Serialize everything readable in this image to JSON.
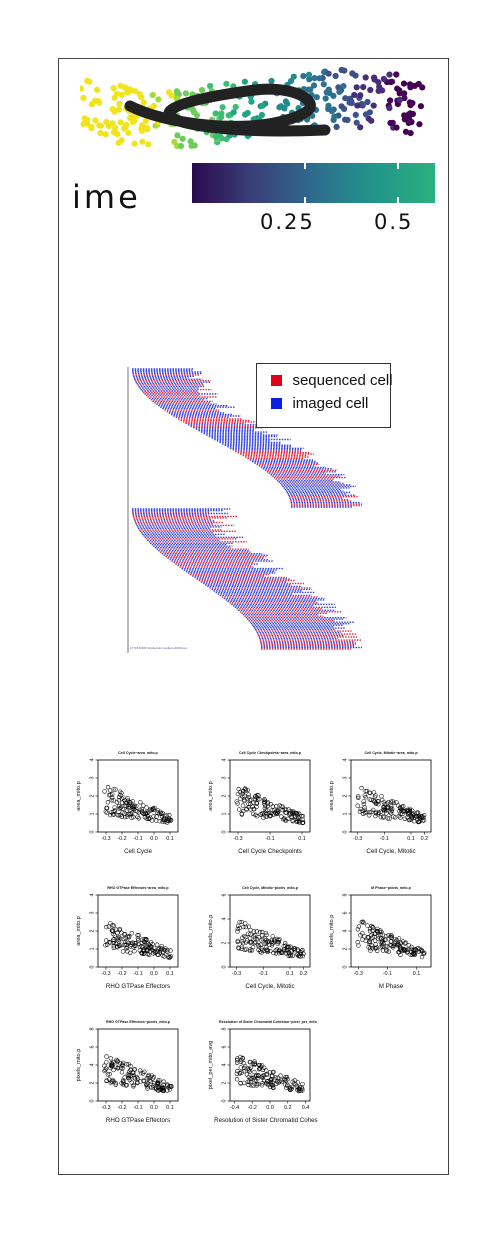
{
  "colorbar": {
    "label": "ime",
    "ticks": [
      "0.25",
      "0.5"
    ],
    "colors": [
      "#2b0b4f",
      "#3a3f7a",
      "#2f6b8e",
      "#21968a",
      "#2bb07f"
    ]
  },
  "legend": {
    "items": [
      {
        "label": "sequenced cell",
        "color": "#e0001b"
      },
      {
        "label": "imaged cell",
        "color": "#0a1fe0"
      }
    ]
  },
  "tiny_caption": "1771572306 Scatterplot median.rdl336.log",
  "chart_data": [
    {
      "type": "scatter",
      "title": "Cell Cycle~area_mito.p",
      "xlabel": "Cell Cycle",
      "ylabel": "area_mito.p",
      "xticks": [
        "-0.3",
        "-0.2",
        "-0.1",
        "0.0",
        "0.1"
      ],
      "yticks": [
        "0",
        "1",
        "2",
        "3",
        "4"
      ],
      "xlim": [
        -0.35,
        0.15
      ],
      "ylim": [
        0,
        4
      ]
    },
    {
      "type": "scatter",
      "title": "Cell Cycle Checkpoints~area_mito.p",
      "xlabel": "Cell Cycle Checkpoints",
      "ylabel": "area_mito.p",
      "xticks": [
        "-0.3",
        "-0.1",
        "0.1"
      ],
      "yticks": [
        "0",
        "1",
        "2",
        "3",
        "4"
      ],
      "xlim": [
        -0.35,
        0.15
      ],
      "ylim": [
        0,
        4
      ]
    },
    {
      "type": "scatter",
      "title": "Cell Cycle, Mitotic~area_mito.p",
      "xlabel": "Cell Cycle, Mitotic",
      "ylabel": "area_mito.p",
      "xticks": [
        "-0.3",
        "-0.1",
        "0.1",
        "0.2"
      ],
      "yticks": [
        "0",
        "1",
        "2",
        "3",
        "4"
      ],
      "xlim": [
        -0.35,
        0.25
      ],
      "ylim": [
        0,
        4
      ]
    },
    {
      "type": "scatter",
      "title": "RHO GTPase Effectors~area_mito.p",
      "xlabel": "RHO GTPase Effectors",
      "ylabel": "area_mito.p",
      "xticks": [
        "-0.3",
        "-0.2",
        "-0.1",
        "0.0",
        "0.1"
      ],
      "yticks": [
        "0",
        "1",
        "2",
        "3",
        "4"
      ],
      "xlim": [
        -0.35,
        0.15
      ],
      "ylim": [
        0,
        4
      ]
    },
    {
      "type": "scatter",
      "title": "Cell Cycle, Mitotic~pixels_mito.p",
      "xlabel": "Cell Cycle, Mitotic",
      "ylabel": "pixels_mito.p",
      "xticks": [
        "-0.3",
        "-0.1",
        "0.1",
        "0.2"
      ],
      "yticks": [
        "0",
        "2",
        "4",
        "6"
      ],
      "xlim": [
        -0.35,
        0.25
      ],
      "ylim": [
        0,
        6
      ]
    },
    {
      "type": "scatter",
      "title": "M Phase~pixels_mito.p",
      "xlabel": "M Phase",
      "ylabel": "pixels_mito.p",
      "xticks": [
        "-0.3",
        "-0.1",
        "0.1"
      ],
      "yticks": [
        "0",
        "2",
        "4",
        "6",
        "8"
      ],
      "xlim": [
        -0.35,
        0.2
      ],
      "ylim": [
        0,
        8
      ]
    },
    {
      "type": "scatter",
      "title": "RHO GTPase Effectors~pixels_mito.p",
      "xlabel": "RHO GTPase Effectors",
      "ylabel": "pixels_mito.p",
      "xticks": [
        "-0.3",
        "-0.2",
        "-0.1",
        "0.0",
        "0.1"
      ],
      "yticks": [
        "0",
        "2",
        "4",
        "6",
        "8"
      ],
      "xlim": [
        -0.35,
        0.15
      ],
      "ylim": [
        0,
        8
      ]
    },
    {
      "type": "scatter",
      "title": "Resolution of Sister Chromatid Cohesion~pixel_per_mito_p",
      "xlabel": "Resolution of Sister Chromatid Cohesion",
      "ylabel": "pixel_per_mito_avg",
      "xticks": [
        "-0.4",
        "-0.2",
        "0.0",
        "0.2",
        "0.4"
      ],
      "yticks": [
        "0",
        "2",
        "4",
        "6",
        "8"
      ],
      "xlim": [
        -0.45,
        0.45
      ],
      "ylim": [
        0,
        8
      ]
    }
  ]
}
